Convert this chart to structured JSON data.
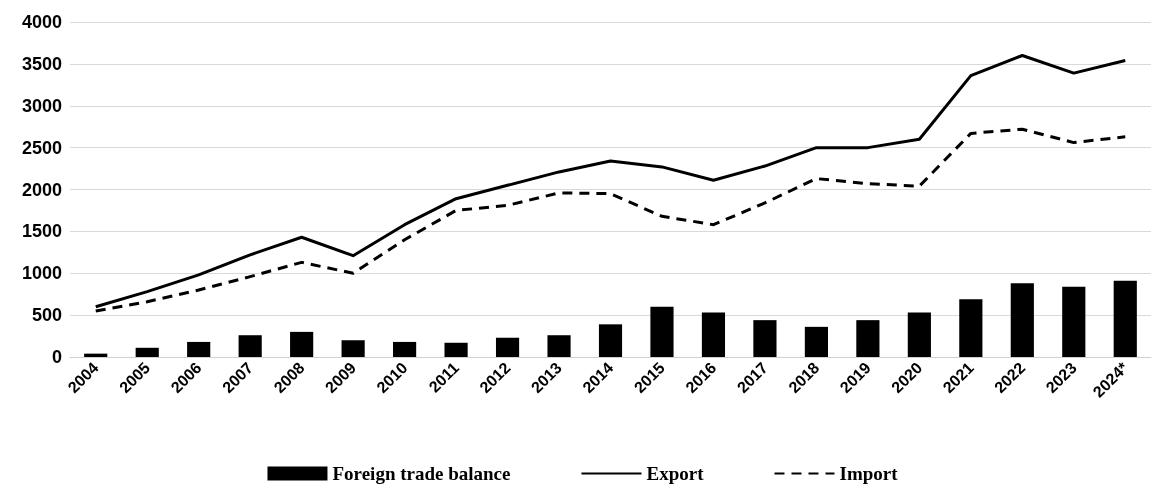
{
  "chart_data": {
    "type": "line",
    "categories": [
      "2004",
      "2005",
      "2006",
      "2007",
      "2008",
      "2009",
      "2010",
      "2011",
      "2012",
      "2013",
      "2014",
      "2015",
      "2016",
      "2017",
      "2018",
      "2019",
      "2020",
      "2021",
      "2022",
      "2023",
      "2024*"
    ],
    "series": [
      {
        "name": "Foreign trade balance",
        "type": "bar",
        "color": "#000000",
        "values": [
          40,
          110,
          180,
          260,
          300,
          200,
          180,
          170,
          230,
          260,
          390,
          600,
          530,
          440,
          360,
          440,
          530,
          690,
          880,
          840,
          910
        ]
      },
      {
        "name": "Export",
        "color": "#000000",
        "line_style": "solid",
        "values": [
          600,
          780,
          980,
          1220,
          1430,
          1210,
          1580,
          1890,
          2050,
          2210,
          2340,
          2270,
          2110,
          2280,
          2500,
          2500,
          2600,
          3360,
          3600,
          3390,
          3540
        ]
      },
      {
        "name": "Import",
        "color": "#000000",
        "line_style": "dashed",
        "values": [
          550,
          660,
          800,
          960,
          1130,
          1000,
          1400,
          1750,
          1810,
          1960,
          1950,
          1680,
          1580,
          1840,
          2130,
          2070,
          2040,
          2670,
          2720,
          2560,
          2630
        ]
      }
    ],
    "ylim": [
      0,
      4000
    ],
    "yticks": [
      0,
      500,
      1000,
      1500,
      2000,
      2500,
      3000,
      3500,
      4000
    ],
    "grid": "y",
    "legend": "bottom",
    "marker": "none"
  }
}
